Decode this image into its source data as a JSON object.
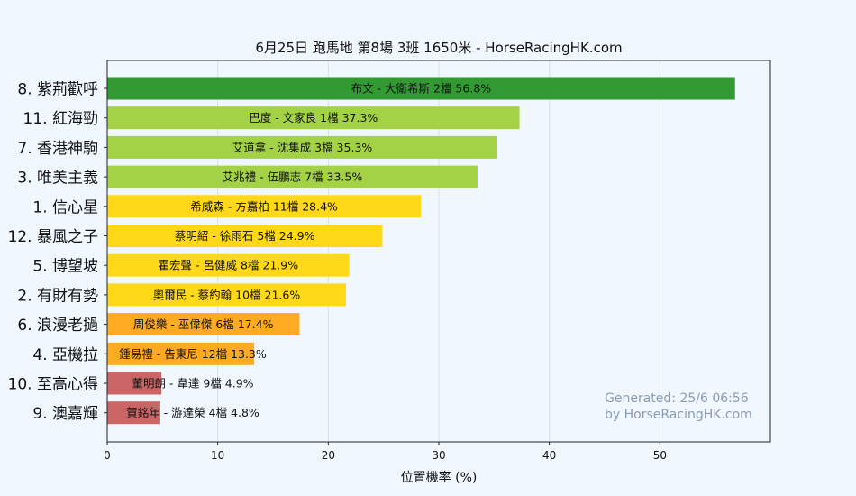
{
  "chart_data": {
    "type": "bar",
    "orientation": "horizontal",
    "title": "6月25日  跑馬地  第8場  3班  1650米 - HorseRacingHK.com",
    "xlabel": "位置機率 (%)",
    "ylabel": "",
    "xlim": [
      0,
      60
    ],
    "xticks": [
      0,
      10,
      20,
      30,
      40,
      50
    ],
    "grid": true,
    "categories": [
      "8. 紫荊歡呼",
      "11. 紅海勁",
      "7. 香港神駒",
      "3. 唯美主義",
      "1. 信心星",
      "12. 暴風之子",
      "5. 博望坡",
      "2. 有財有勢",
      "6. 浪漫老撾",
      "4. 亞機拉",
      "10. 至高心得",
      "9. 澳嘉輝"
    ],
    "values": [
      56.8,
      37.3,
      35.3,
      33.5,
      28.4,
      24.9,
      21.9,
      21.6,
      17.4,
      13.3,
      4.9,
      4.8
    ],
    "bar_labels": [
      "布文 - 大衛希斯 2檔  56.8%",
      "巴度 - 文家良 1檔  37.3%",
      "艾道拿 - 沈集成 3檔  35.3%",
      "艾兆禮 - 伍鵬志 7檔  33.5%",
      "希威森 - 方嘉柏 11檔  28.4%",
      "蔡明紹 - 徐雨石 5檔  24.9%",
      "霍宏聲 - 呂健威 8檔  21.9%",
      "奧爾民 - 蔡約翰 10檔  21.6%",
      "周俊樂 - 巫偉傑 6檔  17.4%",
      "鍾易禮 - 告東尼 12檔  13.3%",
      "董明朗 - 韋達 9檔  4.9%",
      "賀銘年 - 游達榮 4檔  4.8%"
    ],
    "colors": [
      "#339933",
      "#a3d246",
      "#a3d246",
      "#a3d246",
      "#ffd919",
      "#ffd919",
      "#ffd919",
      "#ffd919",
      "#ffaa22",
      "#ffaa22",
      "#cc6666",
      "#cc6666"
    ],
    "watermark": [
      "Generated: 25/6 06:56",
      "by HorseRacingHK.com"
    ]
  }
}
